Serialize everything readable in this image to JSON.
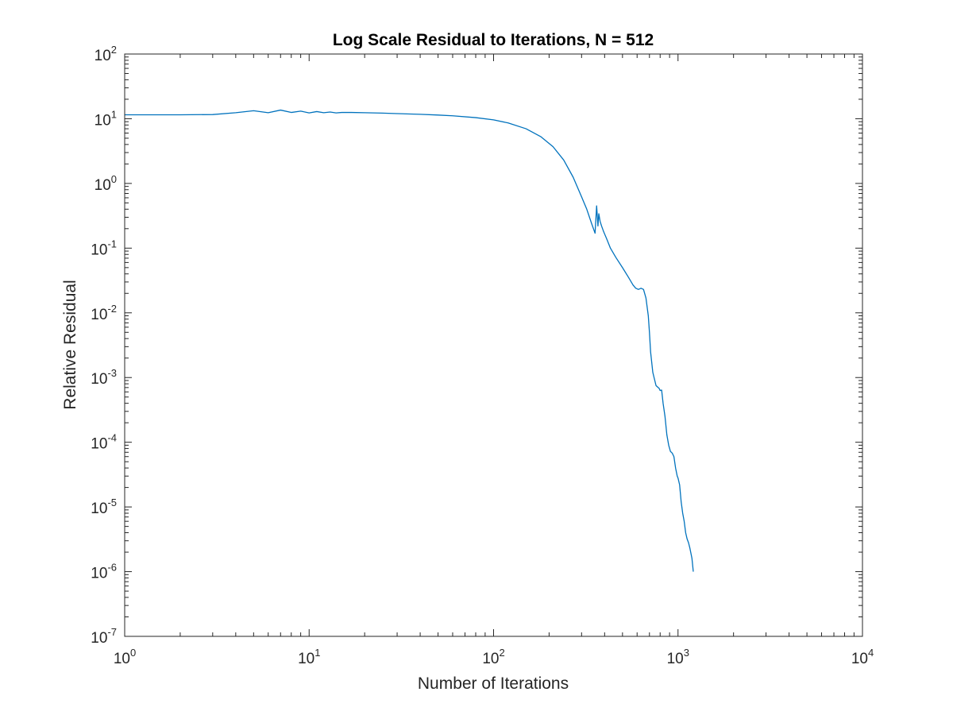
{
  "chart_data": {
    "type": "line",
    "title": "Log Scale Residual to Iterations, N = 512",
    "xlabel": "Number of Iterations",
    "ylabel": "Relative Residual",
    "x_scale": "log",
    "y_scale": "log",
    "xlim": [
      1,
      10000
    ],
    "ylim": [
      1e-07,
      100
    ],
    "grid": false,
    "legend": "none",
    "x_ticks": [
      {
        "base": "10",
        "exp": "0",
        "value": 1
      },
      {
        "base": "10",
        "exp": "1",
        "value": 10
      },
      {
        "base": "10",
        "exp": "2",
        "value": 100
      },
      {
        "base": "10",
        "exp": "3",
        "value": 1000
      },
      {
        "base": "10",
        "exp": "4",
        "value": 10000
      }
    ],
    "y_ticks": [
      {
        "base": "10",
        "exp": "2",
        "value": 100
      },
      {
        "base": "10",
        "exp": "1",
        "value": 10
      },
      {
        "base": "10",
        "exp": "0",
        "value": 1
      },
      {
        "base": "10",
        "exp": "-1",
        "value": 0.1
      },
      {
        "base": "10",
        "exp": "-2",
        "value": 0.01
      },
      {
        "base": "10",
        "exp": "-3",
        "value": 0.001
      },
      {
        "base": "10",
        "exp": "-4",
        "value": 0.0001
      },
      {
        "base": "10",
        "exp": "-5",
        "value": 1e-05
      },
      {
        "base": "10",
        "exp": "-6",
        "value": 1e-06
      },
      {
        "base": "10",
        "exp": "-7",
        "value": 1e-07
      }
    ],
    "series": [
      {
        "color": "#0072BD",
        "x": [
          1,
          2,
          3,
          4,
          5,
          6,
          7,
          8,
          9,
          10,
          11,
          12,
          13,
          14,
          15,
          17,
          20,
          25,
          30,
          40,
          50,
          60,
          80,
          100,
          120,
          150,
          180,
          210,
          240,
          270,
          300,
          320,
          340,
          355,
          362,
          368,
          372,
          378,
          385,
          395,
          410,
          430,
          460,
          500,
          540,
          570,
          590,
          610,
          630,
          650,
          670,
          690,
          700,
          710,
          730,
          760,
          790,
          800,
          815,
          830,
          850,
          870,
          890,
          910,
          930,
          950,
          970,
          990,
          1000,
          1020,
          1040,
          1060,
          1080,
          1100,
          1120,
          1140,
          1160,
          1190,
          1210
        ],
        "y": [
          11.5,
          11.5,
          11.6,
          12.4,
          13.3,
          12.4,
          13.6,
          12.5,
          13.1,
          12.3,
          12.9,
          12.4,
          12.7,
          12.3,
          12.5,
          12.5,
          12.4,
          12.2,
          12.0,
          11.7,
          11.4,
          11.1,
          10.4,
          9.6,
          8.6,
          7.0,
          5.3,
          3.7,
          2.3,
          1.25,
          0.62,
          0.4,
          0.24,
          0.17,
          0.45,
          0.22,
          0.34,
          0.26,
          0.22,
          0.18,
          0.14,
          0.1,
          0.072,
          0.05,
          0.035,
          0.027,
          0.024,
          0.023,
          0.024,
          0.023,
          0.017,
          0.009,
          0.005,
          0.0025,
          0.0012,
          0.00075,
          0.00068,
          0.00063,
          0.00064,
          0.0004,
          0.00025,
          0.00013,
          9e-05,
          7.2e-05,
          6.8e-05,
          6e-05,
          4e-05,
          3e-05,
          2.8e-05,
          2.2e-05,
          1.2e-05,
          8e-06,
          6e-06,
          4e-06,
          3.2e-06,
          2.8e-06,
          2.3e-06,
          1.6e-06,
          1e-06
        ]
      }
    ]
  }
}
